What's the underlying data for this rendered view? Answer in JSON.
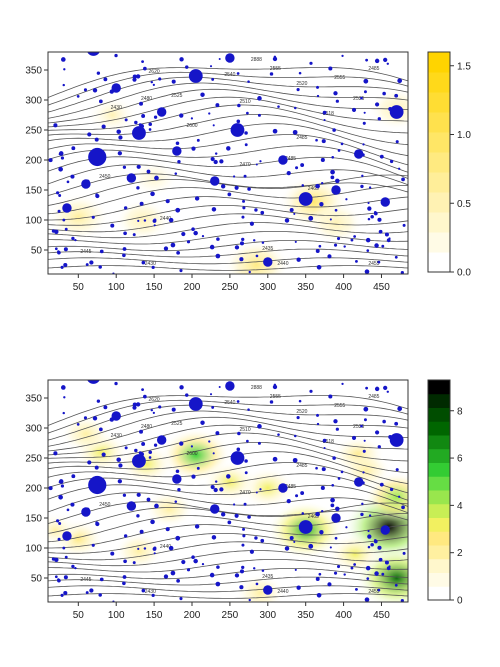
{
  "chart_data": [
    {
      "type": "heatmap",
      "overlay": [
        "contour",
        "scatter"
      ],
      "xlim": [
        10,
        485
      ],
      "ylim": [
        10,
        380
      ],
      "x_ticks": [
        "50",
        "100",
        "150",
        "200",
        "250",
        "300",
        "350",
        "400",
        "450"
      ],
      "y_ticks": [
        "50",
        "100",
        "150",
        "200",
        "250",
        "300",
        "350"
      ],
      "colorbar": {
        "min": 0.0,
        "max": 1.6,
        "ticks": [
          "0.0",
          "0.5",
          "1.0",
          "1.5"
        ],
        "colors": [
          "#ffffff",
          "#fffbe6",
          "#fff7cc",
          "#fff2b3",
          "#ffee99",
          "#ffea80",
          "#ffe666",
          "#ffe14d",
          "#ffdd33",
          "#ffd91a",
          "#ffd400"
        ]
      },
      "hotspots": [
        {
          "x": 50,
          "y": 105,
          "v": 0.7
        },
        {
          "x": 135,
          "y": 100,
          "v": 0.5
        },
        {
          "x": 285,
          "y": 25,
          "v": 0.8
        },
        {
          "x": 360,
          "y": 130,
          "v": 0.9
        },
        {
          "x": 150,
          "y": 170,
          "v": 0.3
        },
        {
          "x": 390,
          "y": 95,
          "v": 0.5
        },
        {
          "x": 95,
          "y": 275,
          "v": 0.4
        },
        {
          "x": 470,
          "y": 285,
          "v": 0.5
        }
      ],
      "contour_labels": [
        {
          "x": 440,
          "y": 350,
          "t": "2485"
        },
        {
          "x": 395,
          "y": 335,
          "t": "2555"
        },
        {
          "x": 420,
          "y": 300,
          "t": "2535"
        },
        {
          "x": 345,
          "y": 325,
          "t": "2520"
        },
        {
          "x": 310,
          "y": 350,
          "t": "2555"
        },
        {
          "x": 285,
          "y": 365,
          "t": "2888"
        },
        {
          "x": 150,
          "y": 345,
          "t": "2620"
        },
        {
          "x": 250,
          "y": 340,
          "t": "2540"
        },
        {
          "x": 180,
          "y": 305,
          "t": "2525"
        },
        {
          "x": 140,
          "y": 300,
          "t": "2480"
        },
        {
          "x": 100,
          "y": 285,
          "t": "2430"
        },
        {
          "x": 200,
          "y": 255,
          "t": "2600"
        },
        {
          "x": 270,
          "y": 295,
          "t": "2510"
        },
        {
          "x": 380,
          "y": 275,
          "t": "2518"
        },
        {
          "x": 345,
          "y": 235,
          "t": "2485"
        },
        {
          "x": 330,
          "y": 200,
          "t": "2485"
        },
        {
          "x": 270,
          "y": 190,
          "t": "2470"
        },
        {
          "x": 360,
          "y": 150,
          "t": "2465"
        },
        {
          "x": 85,
          "y": 170,
          "t": "2450"
        },
        {
          "x": 165,
          "y": 100,
          "t": "2440"
        },
        {
          "x": 60,
          "y": 45,
          "t": "2445"
        },
        {
          "x": 145,
          "y": 25,
          "t": "2430"
        },
        {
          "x": 300,
          "y": 50,
          "t": "2435"
        },
        {
          "x": 320,
          "y": 25,
          "t": "2440"
        },
        {
          "x": 440,
          "y": 25,
          "t": "2455"
        }
      ]
    },
    {
      "type": "heatmap",
      "overlay": [
        "contour",
        "scatter"
      ],
      "xlim": [
        10,
        485
      ],
      "ylim": [
        10,
        380
      ],
      "x_ticks": [
        "50",
        "100",
        "150",
        "200",
        "250",
        "300",
        "350",
        "400",
        "450"
      ],
      "y_ticks": [
        "50",
        "100",
        "150",
        "200",
        "250",
        "300",
        "350"
      ],
      "colorbar": {
        "min": 0,
        "max": 9.3,
        "ticks": [
          "0",
          "2",
          "4",
          "6",
          "8"
        ],
        "colors": [
          "#ffffff",
          "#fffbe6",
          "#fff7cc",
          "#fff0a0",
          "#ffe980",
          "#f2f060",
          "#c8ee55",
          "#99e64d",
          "#66dd44",
          "#33cc33",
          "#22aa22",
          "#118811",
          "#006600",
          "#004d00",
          "#002a00",
          "#000000"
        ]
      },
      "hotspots": [
        {
          "x": 460,
          "y": 135,
          "v": 9.0
        },
        {
          "x": 470,
          "y": 50,
          "v": 7.5
        },
        {
          "x": 470,
          "y": 185,
          "v": 4.5
        },
        {
          "x": 350,
          "y": 130,
          "v": 6.5
        },
        {
          "x": 205,
          "y": 255,
          "v": 5.5
        },
        {
          "x": 140,
          "y": 240,
          "v": 3.0
        },
        {
          "x": 300,
          "y": 200,
          "v": 3.0
        },
        {
          "x": 250,
          "y": 210,
          "v": 3.0
        },
        {
          "x": 80,
          "y": 260,
          "v": 3.0
        },
        {
          "x": 50,
          "y": 115,
          "v": 2.5
        },
        {
          "x": 130,
          "y": 95,
          "v": 2.0
        },
        {
          "x": 290,
          "y": 25,
          "v": 2.0
        },
        {
          "x": 420,
          "y": 255,
          "v": 2.5
        },
        {
          "x": 415,
          "y": 90,
          "v": 3.0
        },
        {
          "x": 170,
          "y": 165,
          "v": 2.0
        },
        {
          "x": 430,
          "y": 230,
          "v": 2.0
        },
        {
          "x": 60,
          "y": 290,
          "v": 2.0
        },
        {
          "x": 20,
          "y": 130,
          "v": 1.8
        }
      ],
      "contour_labels": [
        {
          "x": 440,
          "y": 350,
          "t": "2485"
        },
        {
          "x": 395,
          "y": 335,
          "t": "2555"
        },
        {
          "x": 420,
          "y": 300,
          "t": "2535"
        },
        {
          "x": 345,
          "y": 325,
          "t": "2520"
        },
        {
          "x": 310,
          "y": 350,
          "t": "2555"
        },
        {
          "x": 285,
          "y": 365,
          "t": "2888"
        },
        {
          "x": 150,
          "y": 345,
          "t": "2620"
        },
        {
          "x": 250,
          "y": 340,
          "t": "2540"
        },
        {
          "x": 180,
          "y": 305,
          "t": "2525"
        },
        {
          "x": 140,
          "y": 300,
          "t": "2480"
        },
        {
          "x": 100,
          "y": 285,
          "t": "2430"
        },
        {
          "x": 200,
          "y": 255,
          "t": "2600"
        },
        {
          "x": 270,
          "y": 295,
          "t": "2510"
        },
        {
          "x": 380,
          "y": 275,
          "t": "2518"
        },
        {
          "x": 345,
          "y": 235,
          "t": "2485"
        },
        {
          "x": 330,
          "y": 200,
          "t": "2485"
        },
        {
          "x": 270,
          "y": 190,
          "t": "2470"
        },
        {
          "x": 360,
          "y": 150,
          "t": "2465"
        },
        {
          "x": 85,
          "y": 170,
          "t": "2450"
        },
        {
          "x": 165,
          "y": 100,
          "t": "2440"
        },
        {
          "x": 60,
          "y": 45,
          "t": "2445"
        },
        {
          "x": 145,
          "y": 25,
          "t": "2430"
        },
        {
          "x": 300,
          "y": 50,
          "t": "2435"
        },
        {
          "x": 320,
          "y": 25,
          "t": "2440"
        },
        {
          "x": 440,
          "y": 25,
          "t": "2455"
        }
      ]
    }
  ],
  "contour_lines": [
    {
      "y0": 20,
      "amp": 4,
      "lean": 0.0
    },
    {
      "y0": 32,
      "amp": 5,
      "lean": 0.0
    },
    {
      "y0": 45,
      "amp": 6,
      "lean": 0.02
    },
    {
      "y0": 58,
      "amp": 7,
      "lean": 0.04
    },
    {
      "y0": 72,
      "amp": 8,
      "lean": 0.05
    },
    {
      "y0": 86,
      "amp": 9,
      "lean": 0.06
    },
    {
      "y0": 100,
      "amp": 10,
      "lean": 0.07
    },
    {
      "y0": 115,
      "amp": 10,
      "lean": 0.08
    },
    {
      "y0": 130,
      "amp": 11,
      "lean": 0.09
    },
    {
      "y0": 146,
      "amp": 12,
      "lean": 0.1
    },
    {
      "y0": 162,
      "amp": 12,
      "lean": 0.11
    },
    {
      "y0": 178,
      "amp": 12,
      "lean": 0.12
    },
    {
      "y0": 195,
      "amp": 13,
      "lean": 0.13
    },
    {
      "y0": 212,
      "amp": 13,
      "lean": 0.14
    },
    {
      "y0": 228,
      "amp": 13,
      "lean": 0.15
    },
    {
      "y0": 244,
      "amp": 13,
      "lean": 0.16
    },
    {
      "y0": 260,
      "amp": 13,
      "lean": 0.17
    },
    {
      "y0": 275,
      "amp": 12,
      "lean": 0.18
    },
    {
      "y0": 290,
      "amp": 12,
      "lean": 0.19
    },
    {
      "y0": 304,
      "amp": 11,
      "lean": 0.2
    },
    {
      "y0": 318,
      "amp": 11,
      "lean": 0.21
    },
    {
      "y0": 331,
      "amp": 10,
      "lean": 0.22
    },
    {
      "y0": 344,
      "amp": 9,
      "lean": 0.23
    },
    {
      "y0": 356,
      "amp": 8,
      "lean": 0.24
    },
    {
      "y0": 368,
      "amp": 7,
      "lean": 0.25
    }
  ],
  "big_points": [
    {
      "x": 75,
      "y": 205,
      "s": 3
    },
    {
      "x": 70,
      "y": 385,
      "s": 2
    },
    {
      "x": 130,
      "y": 245,
      "s": 2
    },
    {
      "x": 205,
      "y": 340,
      "s": 2
    },
    {
      "x": 260,
      "y": 250,
      "s": 2
    },
    {
      "x": 350,
      "y": 135,
      "s": 2
    },
    {
      "x": 470,
      "y": 280,
      "s": 2
    },
    {
      "x": 300,
      "y": 30,
      "s": 1
    },
    {
      "x": 420,
      "y": 210,
      "s": 1
    },
    {
      "x": 160,
      "y": 280,
      "s": 1
    },
    {
      "x": 35,
      "y": 120,
      "s": 1
    },
    {
      "x": 250,
      "y": 370,
      "s": 1
    },
    {
      "x": 230,
      "y": 165,
      "s": 1
    },
    {
      "x": 120,
      "y": 170,
      "s": 1
    },
    {
      "x": 320,
      "y": 200,
      "s": 1
    },
    {
      "x": 390,
      "y": 150,
      "s": 1
    },
    {
      "x": 455,
      "y": 130,
      "s": 1
    },
    {
      "x": 180,
      "y": 215,
      "s": 1
    },
    {
      "x": 100,
      "y": 320,
      "s": 1
    },
    {
      "x": 60,
      "y": 160,
      "s": 1
    }
  ],
  "small_points_seed": 37
}
